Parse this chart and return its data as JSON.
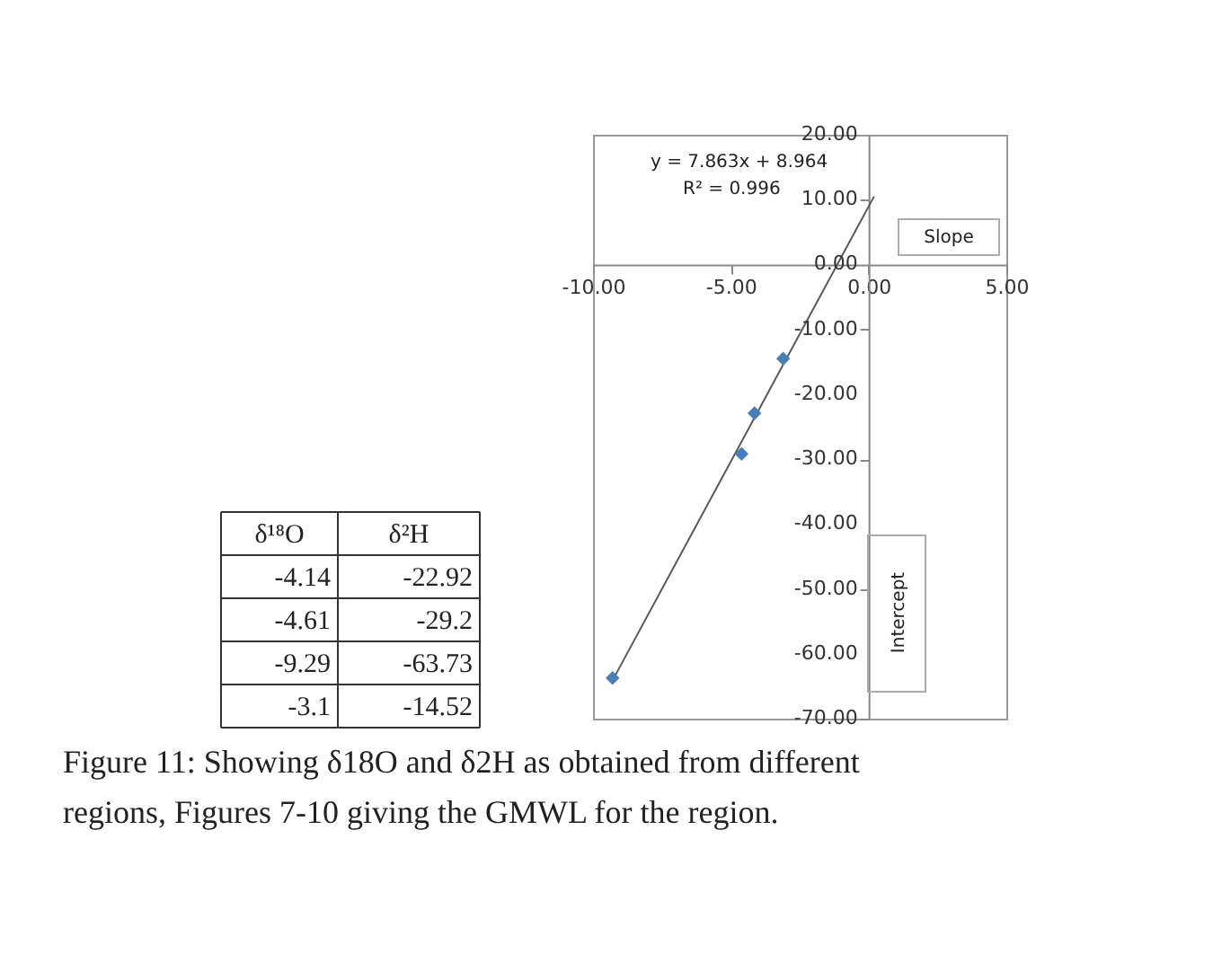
{
  "chart_data": {
    "type": "scatter",
    "series": [
      {
        "color": "#4a7ebb",
        "marker": "diamond",
        "x": [
          -4.14,
          -4.61,
          -9.29,
          -3.1
        ],
        "values": [
          -22.92,
          -29.2,
          -63.73,
          -14.52
        ]
      },
      {
        "type": "line",
        "color": "#595959",
        "x": [
          -9.29,
          0.2
        ],
        "values": [
          -64.1,
          10.5
        ]
      }
    ],
    "xlim": [
      -10,
      5
    ],
    "ylim": [
      -70,
      20
    ],
    "xticks": [
      {
        "value": -10,
        "label": "-10.00"
      },
      {
        "value": -5,
        "label": "-5.00"
      },
      {
        "value": 0,
        "label": "0.00"
      },
      {
        "value": 5,
        "label": "5.00"
      }
    ],
    "yticks": [
      {
        "value": -70,
        "label": "-70.00"
      },
      {
        "value": -60,
        "label": "-60.00"
      },
      {
        "value": -50,
        "label": "-50.00"
      },
      {
        "value": -40,
        "label": "-40.00"
      },
      {
        "value": -30,
        "label": "-30.00"
      },
      {
        "value": -20,
        "label": "-20.00"
      },
      {
        "value": -10,
        "label": "-10.00"
      },
      {
        "value": 0,
        "label": "0.00"
      },
      {
        "value": 10,
        "label": "10.00"
      },
      {
        "value": 20,
        "label": "20.00"
      }
    ],
    "annotations": [
      "y = 7.863x + 8.964",
      "R² = 0.996",
      "Slope",
      "Intercept",
      "Figure 11: Showing δ18O and δ2H as obtained from different regions, Figures 7-10 giving the GMWL for the region.",
      "δ¹⁸O",
      "δ²H",
      "-4.14",
      "-22.92",
      "-4.61",
      "-29.2",
      "-9.29",
      "-63.73",
      "-3.1",
      "-14.52"
    ]
  }
}
